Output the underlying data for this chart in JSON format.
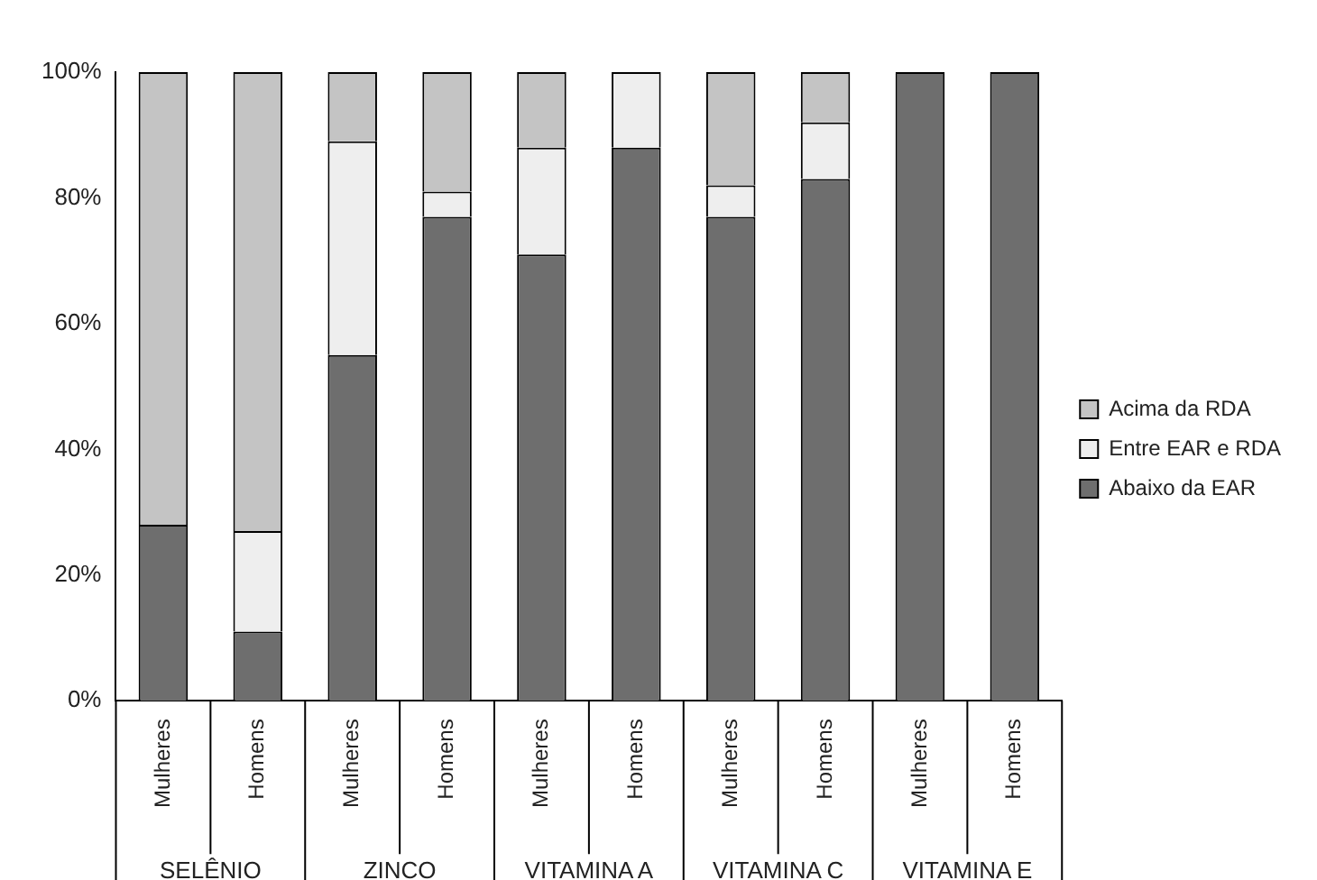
{
  "chart_data": {
    "type": "bar",
    "stacked": true,
    "categories": [
      "Mulheres",
      "Homens",
      "Mulheres",
      "Homens",
      "Mulheres",
      "Homens",
      "Mulheres",
      "Homens",
      "Mulheres",
      "Homens"
    ],
    "annotations": [
      "SELÊNIO",
      "ZINCO",
      "VITAMINA A",
      "VITAMINA C",
      "VITAMINA E"
    ],
    "series": [
      {
        "name": "Abaixo da EAR",
        "color": "#6e6e6e",
        "values": [
          28,
          11,
          55,
          77,
          71,
          88,
          77,
          83,
          100,
          100
        ]
      },
      {
        "name": "Entre EAR e RDA",
        "color": "#eeeeee",
        "values": [
          0,
          16,
          34,
          4,
          17,
          12,
          5,
          9,
          0,
          0
        ]
      },
      {
        "name": "Acima da RDA",
        "color": "#c4c4c4",
        "values": [
          72,
          73,
          11,
          19,
          12,
          0,
          18,
          8,
          0,
          0
        ]
      }
    ],
    "ylim": [
      0,
      100
    ],
    "yticks": [
      {
        "value": 0,
        "label": "0%"
      },
      {
        "value": 20,
        "label": "20%"
      },
      {
        "value": 40,
        "label": "40%"
      },
      {
        "value": 60,
        "label": "60%"
      },
      {
        "value": 80,
        "label": "80%"
      },
      {
        "value": 100,
        "label": "100%"
      }
    ],
    "grid": false,
    "legend": "right"
  }
}
